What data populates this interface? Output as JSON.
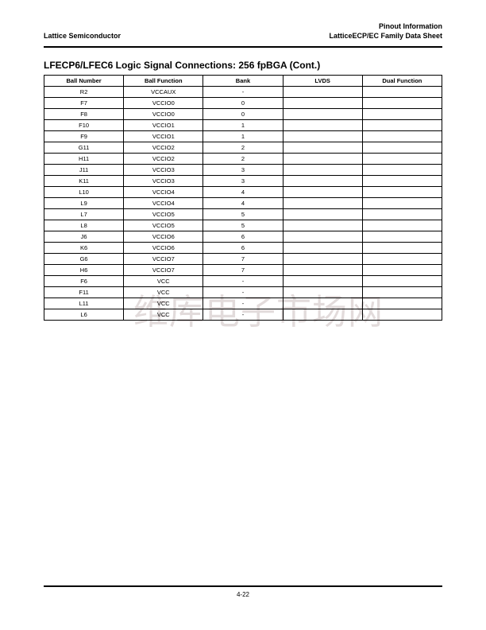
{
  "header": {
    "brand": "Lattice Semiconductor",
    "doc_line1": "Pinout Information",
    "doc_line2": "LatticeECP/EC Family Data Sheet"
  },
  "section": {
    "title": "LFECP6/LFEC6 Logic Signal Connections: 256 fpBGA (Cont.)"
  },
  "table": {
    "columns": [
      "Ball Number",
      "Ball Function",
      "Bank",
      "LVDS",
      "Dual Function"
    ],
    "column_keys": [
      "ball-number",
      "ball-function",
      "bank",
      "lvds",
      "dual-function"
    ],
    "rows": [
      [
        "R2",
        "VCCAUX",
        "-",
        "",
        ""
      ],
      [
        "F7",
        "VCCIO0",
        "0",
        "",
        ""
      ],
      [
        "F8",
        "VCCIO0",
        "0",
        "",
        ""
      ],
      [
        "F10",
        "VCCIO1",
        "1",
        "",
        ""
      ],
      [
        "F9",
        "VCCIO1",
        "1",
        "",
        ""
      ],
      [
        "G11",
        "VCCIO2",
        "2",
        "",
        ""
      ],
      [
        "H11",
        "VCCIO2",
        "2",
        "",
        ""
      ],
      [
        "J11",
        "VCCIO3",
        "3",
        "",
        ""
      ],
      [
        "K11",
        "VCCIO3",
        "3",
        "",
        ""
      ],
      [
        "L10",
        "VCCIO4",
        "4",
        "",
        ""
      ],
      [
        "L9",
        "VCCIO4",
        "4",
        "",
        ""
      ],
      [
        "L7",
        "VCCIO5",
        "5",
        "",
        ""
      ],
      [
        "L8",
        "VCCIO5",
        "5",
        "",
        ""
      ],
      [
        "J6",
        "VCCIO6",
        "6",
        "",
        ""
      ],
      [
        "K6",
        "VCCIO6",
        "6",
        "",
        ""
      ],
      [
        "G6",
        "VCCIO7",
        "7",
        "",
        ""
      ],
      [
        "H6",
        "VCCIO7",
        "7",
        "",
        ""
      ],
      [
        "F6",
        "VCC",
        "-",
        "",
        ""
      ],
      [
        "F11",
        "VCC",
        "-",
        "",
        ""
      ],
      [
        "L11",
        "VCC",
        "-",
        "",
        ""
      ],
      [
        "L6",
        "VCC",
        "-",
        "",
        ""
      ]
    ]
  },
  "watermark": {
    "text": "维库电子市场网"
  },
  "footer": {
    "page_number": "4-22"
  },
  "colors": {
    "text": "#000000",
    "rule": "#000000",
    "watermark": "#d9cfcf",
    "background": "#ffffff"
  }
}
